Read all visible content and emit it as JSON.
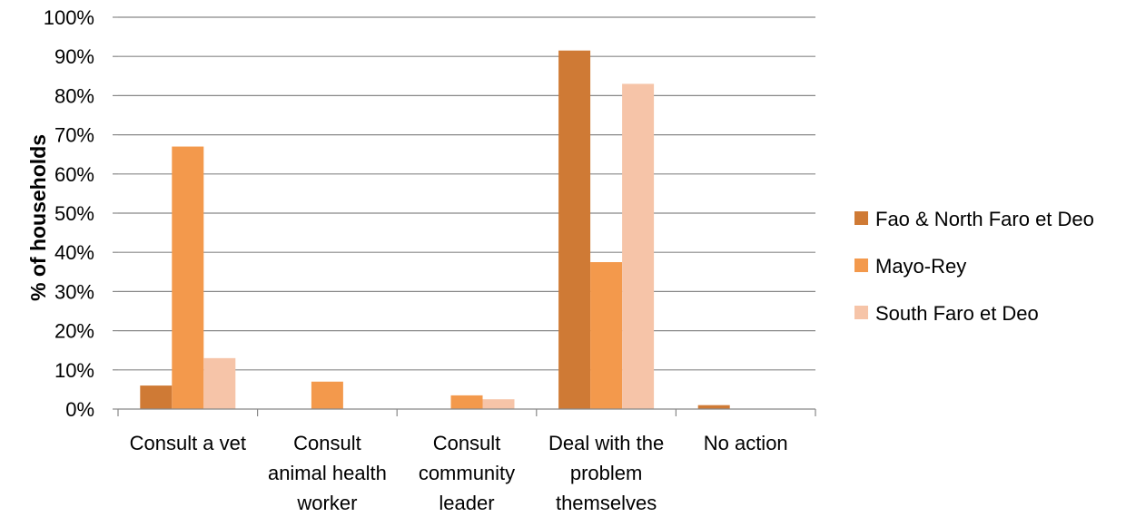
{
  "chart_data": {
    "type": "bar",
    "categories": [
      [
        "Consult a vet"
      ],
      [
        "Consult",
        "animal health",
        "worker"
      ],
      [
        "Consult",
        "community",
        "leader"
      ],
      [
        "Deal with the",
        "problem",
        "themselves"
      ],
      [
        "No action"
      ]
    ],
    "series": [
      {
        "name": "Fao & North Faro et Deo",
        "color": "#cf7a35",
        "values": [
          6,
          0,
          0,
          91.5,
          1
        ]
      },
      {
        "name": "Mayo-Rey",
        "color": "#f3994c",
        "values": [
          67,
          7,
          3.5,
          37.5,
          0
        ]
      },
      {
        "name": "South Faro et Deo",
        "color": "#f6c4a8",
        "values": [
          13,
          0,
          2.5,
          83,
          0
        ]
      }
    ],
    "ylabel": "% of households",
    "ylim": [
      0,
      100
    ],
    "yticks": [
      "0%",
      "10%",
      "20%",
      "30%",
      "40%",
      "50%",
      "60%",
      "70%",
      "80%",
      "90%",
      "100%"
    ],
    "grid": true,
    "legend_position": "right"
  }
}
